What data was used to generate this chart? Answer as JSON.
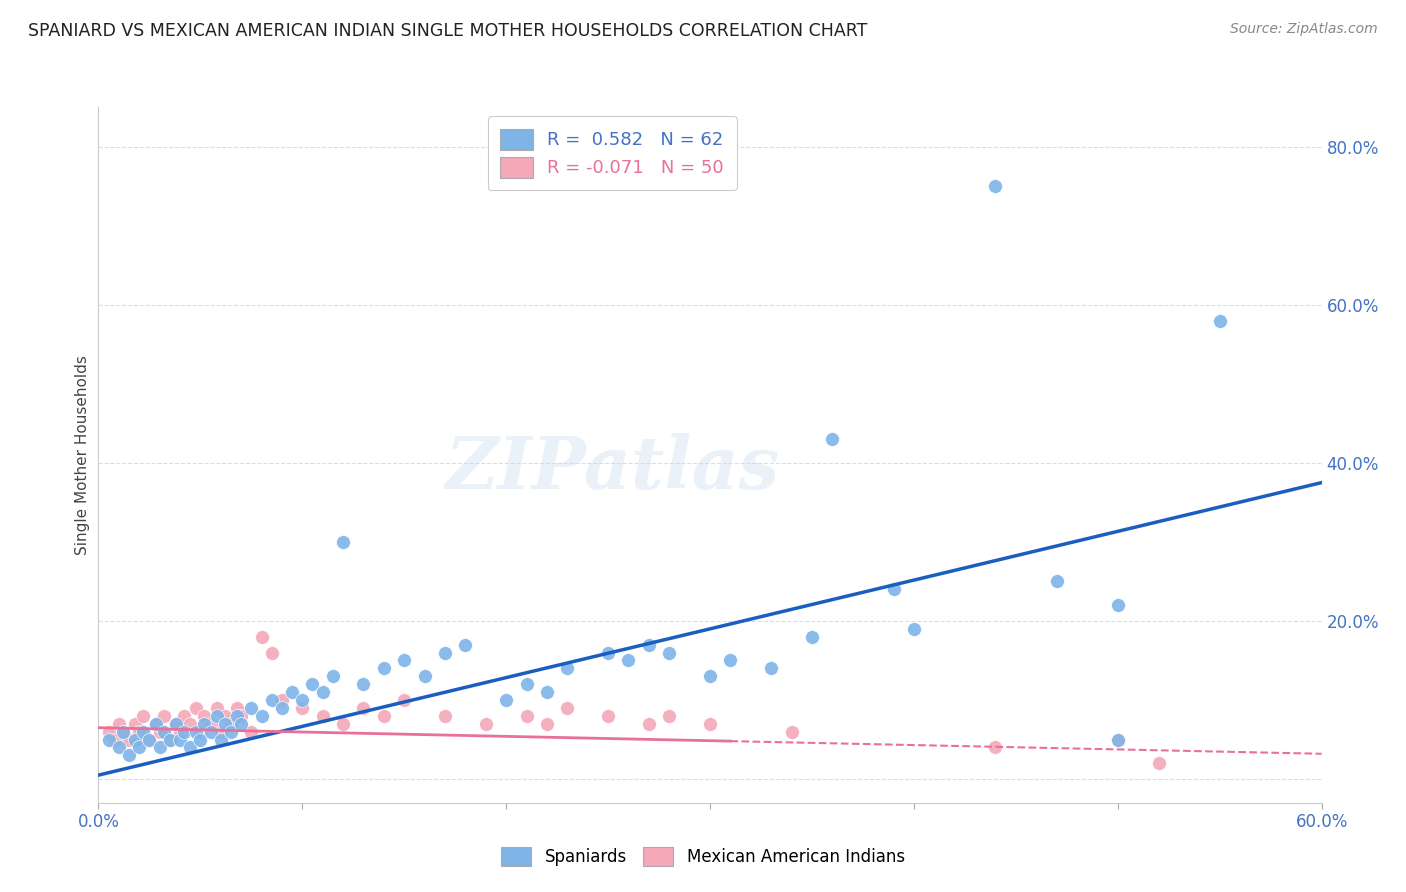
{
  "title": "SPANIARD VS MEXICAN AMERICAN INDIAN SINGLE MOTHER HOUSEHOLDS CORRELATION CHART",
  "source": "Source: ZipAtlas.com",
  "ylabel": "Single Mother Households",
  "xlim": [
    0.0,
    0.6
  ],
  "ylim": [
    -0.03,
    0.85
  ],
  "blue_color": "#7EB4E8",
  "pink_color": "#F4A8B8",
  "blue_line_color": "#1A5FBF",
  "pink_line_color": "#E8709A",
  "blue_scatter_x": [
    0.005,
    0.01,
    0.012,
    0.015,
    0.018,
    0.02,
    0.022,
    0.025,
    0.028,
    0.03,
    0.032,
    0.035,
    0.038,
    0.04,
    0.042,
    0.045,
    0.048,
    0.05,
    0.052,
    0.055,
    0.058,
    0.06,
    0.062,
    0.065,
    0.068,
    0.07,
    0.075,
    0.08,
    0.085,
    0.09,
    0.095,
    0.1,
    0.105,
    0.11,
    0.115,
    0.12,
    0.13,
    0.14,
    0.15,
    0.16,
    0.17,
    0.18,
    0.2,
    0.21,
    0.22,
    0.23,
    0.25,
    0.26,
    0.27,
    0.28,
    0.3,
    0.31,
    0.33,
    0.35,
    0.36,
    0.39,
    0.4,
    0.44,
    0.47,
    0.5,
    0.5,
    0.55
  ],
  "blue_scatter_y": [
    0.05,
    0.04,
    0.06,
    0.03,
    0.05,
    0.04,
    0.06,
    0.05,
    0.07,
    0.04,
    0.06,
    0.05,
    0.07,
    0.05,
    0.06,
    0.04,
    0.06,
    0.05,
    0.07,
    0.06,
    0.08,
    0.05,
    0.07,
    0.06,
    0.08,
    0.07,
    0.09,
    0.08,
    0.1,
    0.09,
    0.11,
    0.1,
    0.12,
    0.11,
    0.13,
    0.3,
    0.12,
    0.14,
    0.15,
    0.13,
    0.16,
    0.17,
    0.1,
    0.12,
    0.11,
    0.14,
    0.16,
    0.15,
    0.17,
    0.16,
    0.13,
    0.15,
    0.14,
    0.18,
    0.43,
    0.24,
    0.19,
    0.75,
    0.25,
    0.05,
    0.22,
    0.58
  ],
  "pink_scatter_x": [
    0.005,
    0.008,
    0.01,
    0.012,
    0.015,
    0.018,
    0.02,
    0.022,
    0.025,
    0.028,
    0.03,
    0.032,
    0.035,
    0.038,
    0.04,
    0.042,
    0.045,
    0.048,
    0.05,
    0.052,
    0.055,
    0.058,
    0.06,
    0.062,
    0.065,
    0.068,
    0.07,
    0.075,
    0.08,
    0.085,
    0.09,
    0.1,
    0.11,
    0.12,
    0.13,
    0.14,
    0.15,
    0.17,
    0.19,
    0.21,
    0.22,
    0.23,
    0.25,
    0.27,
    0.28,
    0.3,
    0.34,
    0.44,
    0.5,
    0.52
  ],
  "pink_scatter_y": [
    0.06,
    0.05,
    0.07,
    0.06,
    0.05,
    0.07,
    0.06,
    0.08,
    0.05,
    0.07,
    0.06,
    0.08,
    0.05,
    0.07,
    0.06,
    0.08,
    0.07,
    0.09,
    0.06,
    0.08,
    0.07,
    0.09,
    0.06,
    0.08,
    0.07,
    0.09,
    0.08,
    0.06,
    0.18,
    0.16,
    0.1,
    0.09,
    0.08,
    0.07,
    0.09,
    0.08,
    0.1,
    0.08,
    0.07,
    0.08,
    0.07,
    0.09,
    0.08,
    0.07,
    0.08,
    0.07,
    0.06,
    0.04,
    0.05,
    0.02
  ],
  "blue_trend": [
    0.0,
    0.6,
    0.005,
    0.375
  ],
  "pink_solid_trend": [
    0.0,
    0.31,
    0.065,
    0.048
  ],
  "pink_dashed_trend": [
    0.31,
    0.6,
    0.048,
    0.032
  ],
  "grid_color": "#DDDDDD",
  "background_color": "#FFFFFF",
  "tick_color": "#4472C4",
  "watermark_text": "ZIPatlas"
}
